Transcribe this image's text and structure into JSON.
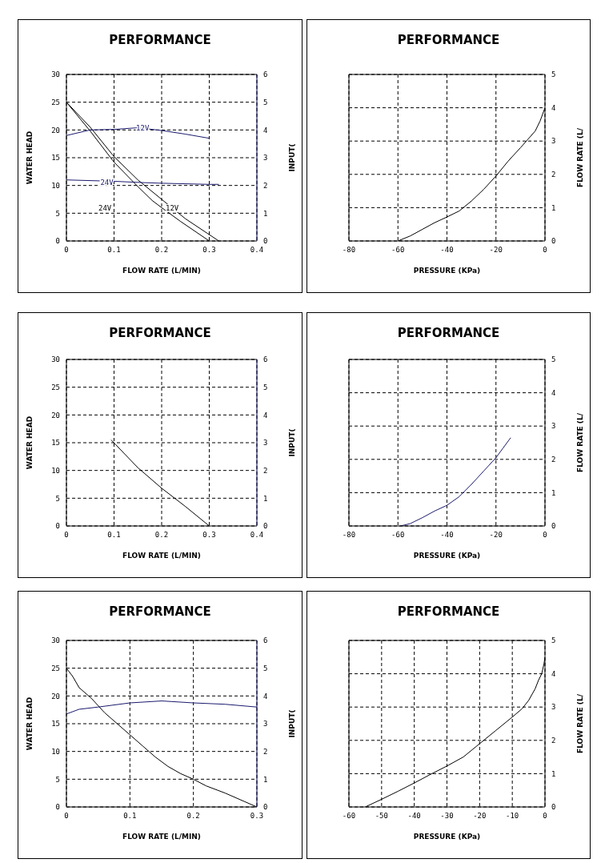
{
  "chart_data": [
    {
      "type": "line",
      "title": "PERFORMANCE",
      "xlabel": "FLOW RATE (L/MIN)",
      "ylabel": "WATER HEAD",
      "y2label": "INPUT(",
      "xlim": [
        0,
        0.4
      ],
      "xticks": [
        0,
        0.1,
        0.2,
        0.3,
        0.4
      ],
      "ylim": [
        0,
        30
      ],
      "yticks": [
        0,
        5,
        10,
        15,
        20,
        25,
        30
      ],
      "y2lim": [
        0,
        6
      ],
      "y2ticks": [
        0,
        1,
        2,
        3,
        4,
        5,
        6
      ],
      "grid": true,
      "series": [
        {
          "color": "#000000",
          "x": [
            0,
            0.05,
            0.1,
            0.15,
            0.18,
            0.2,
            0.24,
            0.3
          ],
          "values": [
            25,
            19.8,
            14.2,
            9.8,
            7.3,
            6,
            3.5,
            0
          ]
        },
        {
          "color": "#000000",
          "x": [
            0,
            0.05,
            0.1,
            0.15,
            0.2,
            0.25,
            0.32
          ],
          "values": [
            25,
            20.5,
            15.2,
            11,
            7.5,
            4,
            0
          ]
        },
        {
          "color": "#1a1a6e",
          "axis": "y2",
          "x": [
            0,
            0.05,
            0.1,
            0.15,
            0.2,
            0.25,
            0.3
          ],
          "values": [
            3.8,
            4,
            4.02,
            4.08,
            3.98,
            3.85,
            3.7
          ]
        },
        {
          "color": "#1a1a6e",
          "axis": "y2",
          "x": [
            0,
            0.1,
            0.165,
            0.2,
            0.3,
            0.32
          ],
          "values": [
            2.2,
            2.15,
            2.1,
            2.08,
            2.04,
            2.04
          ]
        }
      ],
      "annotations": [
        {
          "text": "12V",
          "x": 0.16,
          "y": 20.4
        },
        {
          "text": "24V",
          "x": 0.085,
          "y": 10.5
        },
        "24V",
        "12V"
      ]
    },
    {
      "type": "line",
      "title": "PERFORMANCE",
      "xlabel": "PRESSURE (KPa)",
      "y2label": "FLOW RATE (L/",
      "xlim": [
        -80,
        0
      ],
      "xticks": [
        -80,
        -60,
        -40,
        -20,
        0
      ],
      "y2lim": [
        0,
        5
      ],
      "y2ticks": [
        0,
        1,
        2,
        3,
        4,
        5
      ],
      "grid": true,
      "series": [
        {
          "color": "#000000",
          "axis": "y2",
          "x": [
            -60,
            -55,
            -50,
            -45,
            -40,
            -35,
            -30,
            -25,
            -20,
            -15,
            -10,
            -7,
            -4,
            -2,
            -1,
            0
          ],
          "values": [
            0,
            0.15,
            0.35,
            0.55,
            0.72,
            0.9,
            1.2,
            1.55,
            1.95,
            2.4,
            2.8,
            3.05,
            3.3,
            3.6,
            3.8,
            4
          ]
        }
      ]
    },
    {
      "type": "line",
      "title": "PERFORMANCE",
      "xlabel": "FLOW RATE (L/MIN)",
      "ylabel": "WATER HEAD",
      "y2label": "INPUT(",
      "xlim": [
        0,
        0.4
      ],
      "xticks": [
        0,
        0.1,
        0.2,
        0.3,
        0.4
      ],
      "ylim": [
        0,
        30
      ],
      "yticks": [
        0,
        5,
        10,
        15,
        20,
        25,
        30
      ],
      "y2lim": [
        0,
        6
      ],
      "y2ticks": [
        0,
        1,
        2,
        3,
        4,
        5,
        6
      ],
      "grid": true,
      "series": [
        {
          "color": "#000000",
          "x": [
            0.094,
            0.15,
            0.2,
            0.25,
            0.3
          ],
          "values": [
            15.5,
            10.5,
            6.8,
            3.5,
            0
          ]
        }
      ]
    },
    {
      "type": "line",
      "title": "PERFORMANCE",
      "xlabel": "PRESSURE (KPa)",
      "y2label": "FLOW RATE (L/",
      "xlim": [
        -80,
        0
      ],
      "xticks": [
        -80,
        -60,
        -40,
        -20,
        0
      ],
      "y2lim": [
        0,
        5
      ],
      "y2ticks": [
        0,
        1,
        2,
        3,
        4,
        5
      ],
      "grid": true,
      "series": [
        {
          "color": "#1a1a6e",
          "axis": "y2",
          "x": [
            -59,
            -55,
            -50,
            -45,
            -40,
            -35,
            -30,
            -25,
            -20,
            -17,
            -14
          ],
          "values": [
            0,
            0.07,
            0.25,
            0.45,
            0.62,
            0.88,
            1.25,
            1.65,
            2.05,
            2.35,
            2.65
          ]
        }
      ]
    },
    {
      "type": "line",
      "title": "PERFORMANCE",
      "xlabel": "FLOW RATE (L/MIN)",
      "ylabel": "WATER HEAD",
      "y2label": "INPUT(",
      "xlim": [
        0,
        0.3
      ],
      "xticks": [
        0,
        0.1,
        0.2,
        0.3
      ],
      "ylim": [
        0,
        30
      ],
      "yticks": [
        0,
        5,
        10,
        15,
        20,
        25,
        30
      ],
      "y2lim": [
        0,
        6
      ],
      "y2ticks": [
        0,
        1,
        2,
        3,
        4,
        5,
        6
      ],
      "grid": true,
      "series": [
        {
          "color": "#000000",
          "x": [
            0,
            0.01,
            0.02,
            0.04,
            0.06,
            0.08,
            0.1,
            0.12,
            0.14,
            0.16,
            0.18,
            0.2,
            0.22,
            0.25,
            0.28,
            0.3
          ],
          "values": [
            25,
            23.5,
            21.5,
            19.5,
            17,
            15,
            13,
            11,
            9,
            7.3,
            6,
            5,
            3.8,
            2.5,
            1,
            0
          ]
        },
        {
          "color": "#1a1a6e",
          "axis": "y2",
          "x": [
            0,
            0.02,
            0.05,
            0.1,
            0.15,
            0.2,
            0.25,
            0.3
          ],
          "values": [
            3.35,
            3.52,
            3.6,
            3.75,
            3.82,
            3.75,
            3.7,
            3.6
          ]
        }
      ]
    },
    {
      "type": "line",
      "title": "PERFORMANCE",
      "xlabel": "PRESSURE (KPa)",
      "y2label": "FLOW RATE (L/",
      "xlim": [
        -60,
        0
      ],
      "xticks": [
        -60,
        -50,
        -40,
        -30,
        -20,
        -10,
        0
      ],
      "y2lim": [
        0,
        5
      ],
      "y2ticks": [
        0,
        1,
        2,
        3,
        4,
        5
      ],
      "grid": true,
      "series": [
        {
          "color": "#000000",
          "axis": "y2",
          "x": [
            -55,
            -50,
            -45,
            -40,
            -35,
            -30,
            -25,
            -20,
            -15,
            -10,
            -7,
            -5,
            -3,
            -2,
            -1,
            -0.3,
            0
          ],
          "values": [
            0,
            0.23,
            0.47,
            0.72,
            0.98,
            1.23,
            1.5,
            1.9,
            2.3,
            2.7,
            2.95,
            3.2,
            3.55,
            3.8,
            4,
            4.3,
            4.5
          ]
        }
      ]
    }
  ]
}
